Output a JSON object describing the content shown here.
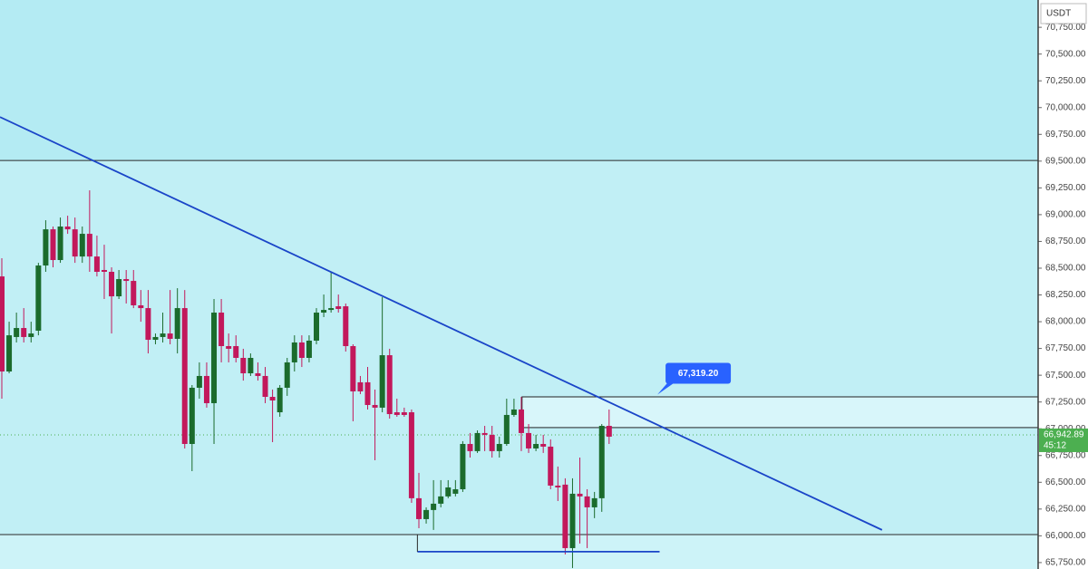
{
  "chart_data": {
    "type": "candlestick",
    "currency": "USDT",
    "up_color": "#1b6b2c",
    "down_color": "#c2185b",
    "ylim": [
      65690,
      71005
    ],
    "yticks": [
      {
        "value": 65750,
        "label": "65,750.00"
      },
      {
        "value": 66000,
        "label": "66,000.00"
      },
      {
        "value": 66250,
        "label": "66,250.00"
      },
      {
        "value": 66500,
        "label": "66,500.00"
      },
      {
        "value": 66750,
        "label": "66,750.00"
      },
      {
        "value": 67000,
        "label": "67,000.00"
      },
      {
        "value": 67250,
        "label": "67,250.00"
      },
      {
        "value": 67500,
        "label": "67,500.00"
      },
      {
        "value": 67750,
        "label": "67,750.00"
      },
      {
        "value": 68000,
        "label": "68,000.00"
      },
      {
        "value": 68250,
        "label": "68,250.00"
      },
      {
        "value": 68500,
        "label": "68,500.00"
      },
      {
        "value": 68750,
        "label": "68,750.00"
      },
      {
        "value": 69000,
        "label": "69,000.00"
      },
      {
        "value": 69250,
        "label": "69,250.00"
      },
      {
        "value": 69500,
        "label": "69,500.00"
      },
      {
        "value": 69750,
        "label": "69,750.00"
      },
      {
        "value": 70000,
        "label": "70,000.00"
      },
      {
        "value": 70250,
        "label": "70,250.00"
      },
      {
        "value": 70500,
        "label": "70,500.00"
      },
      {
        "value": 70750,
        "label": "70,750.00"
      }
    ],
    "open": [
      68423,
      67535,
      67857,
      67941,
      67857,
      67916,
      68525,
      68863,
      68576,
      68889,
      68863,
      68609,
      68821,
      68609,
      68483,
      68466,
      68237,
      68398,
      68381,
      68153,
      68127,
      67831,
      67857,
      67890,
      67840,
      68127,
      66858,
      67383,
      67493,
      67239,
      68085,
      67772,
      67772,
      67662,
      67518,
      67518,
      67493,
      67298,
      67154,
      67383,
      67620,
      67806,
      67662,
      67823,
      68085,
      68110,
      68144,
      68144,
      67772,
      67434,
      67434,
      67222,
      67197,
      67687,
      67154,
      67154,
      67154,
      66351,
      66156,
      66241,
      66300,
      66368,
      66393,
      66435,
      66858,
      66791,
      66960,
      66943,
      66791,
      66858,
      67129,
      67180,
      66960,
      66816,
      66858,
      66833,
      66469,
      66478,
      65885,
      66393,
      66368,
      66266,
      66351,
      67027
    ],
    "high": [
      68593,
      68000,
      68085,
      68127,
      68000,
      68550,
      68948,
      68889,
      68973,
      68990,
      68973,
      68889,
      69227,
      68804,
      68719,
      68508,
      68483,
      68483,
      68483,
      68296,
      68296,
      67890,
      68085,
      68296,
      68313,
      68296,
      67408,
      67620,
      67620,
      68212,
      68212,
      67890,
      67873,
      67747,
      67704,
      67620,
      67577,
      67366,
      67408,
      67662,
      67873,
      67873,
      67873,
      68127,
      68254,
      68466,
      68254,
      68170,
      67789,
      67493,
      67577,
      67366,
      68229,
      67747,
      67281,
      67197,
      67180,
      66588,
      66266,
      66520,
      66520,
      66520,
      66520,
      66884,
      66960,
      66985,
      67027,
      67027,
      66926,
      67281,
      67281,
      67298,
      67044,
      66943,
      66943,
      66901,
      66647,
      66537,
      66537,
      66731,
      66435,
      66410,
      67044,
      67180
    ],
    "low": [
      67281,
      67518,
      67806,
      67806,
      67806,
      67873,
      68466,
      68508,
      68550,
      68821,
      68550,
      68550,
      68466,
      68423,
      68212,
      67890,
      68212,
      68170,
      68127,
      68000,
      67704,
      67789,
      67806,
      67789,
      67704,
      66816,
      66604,
      67281,
      67197,
      66858,
      67620,
      67620,
      67620,
      67450,
      67493,
      67450,
      67239,
      66875,
      67112,
      67307,
      67535,
      67577,
      67620,
      67789,
      68043,
      68085,
      68085,
      67721,
      67070,
      67324,
      67180,
      66706,
      67154,
      67095,
      67112,
      67112,
      66308,
      66071,
      66114,
      66055,
      66266,
      66351,
      66368,
      66410,
      66731,
      66774,
      66791,
      66731,
      66731,
      66841,
      67112,
      66791,
      66774,
      66791,
      66774,
      66435,
      66325,
      65826,
      65699,
      65928,
      65885,
      66165,
      66224,
      66858
    ],
    "close": [
      67535,
      67873,
      67941,
      67857,
      67890,
      68525,
      68863,
      68576,
      68889,
      68863,
      68609,
      68821,
      68609,
      68466,
      68466,
      68237,
      68398,
      68381,
      68153,
      68127,
      67831,
      67857,
      67890,
      67840,
      68127,
      66858,
      67383,
      67493,
      67239,
      68085,
      67772,
      67747,
      67662,
      67518,
      67662,
      67493,
      67298,
      67264,
      67383,
      67620,
      67806,
      67662,
      67823,
      68085,
      68110,
      68127,
      68119,
      67772,
      67349,
      67349,
      67222,
      67197,
      67687,
      67137,
      67129,
      67129,
      66351,
      66156,
      66241,
      66300,
      66368,
      66452,
      66435,
      66858,
      66791,
      66960,
      66943,
      66791,
      66858,
      67129,
      67180,
      66960,
      66816,
      66858,
      66833,
      66469,
      66452,
      65885,
      66393,
      66368,
      66266,
      66351,
      67027,
      66926
    ],
    "horizontal_lines": [
      69506,
      66012
    ],
    "zone": {
      "start_index": 71.1,
      "top": 67298,
      "bottom": 67011
    },
    "trend_line": {
      "x": [
        -0.25,
        120.3
      ],
      "y": [
        69912,
        66055
      ],
      "color": "#1a45c8"
    },
    "support_line": {
      "x": [
        56.8,
        89.9
      ],
      "y": 65852,
      "color": "#1a45c8"
    },
    "price_callout": {
      "label": "67,319.20",
      "value": 67319.2,
      "index": 89.6,
      "color": "#2962ff"
    },
    "last_price": {
      "label": "66,942.89",
      "value": 66942.89,
      "countdown": "45:12",
      "color": "#4caf50"
    }
  }
}
